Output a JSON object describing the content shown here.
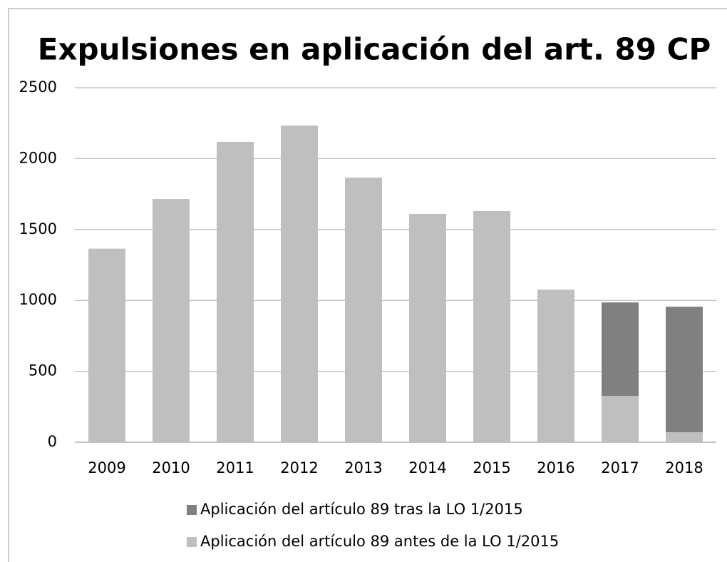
{
  "chart_data": {
    "type": "bar",
    "stacked": true,
    "title": "Expulsiones en aplicación del art. 89 CP",
    "categories": [
      "2009",
      "2010",
      "2011",
      "2012",
      "2013",
      "2014",
      "2015",
      "2016",
      "2017",
      "2018"
    ],
    "series": [
      {
        "name": "Aplicación del artículo 89 antes de la LO 1/2015",
        "color": "#bfbfbf",
        "values": [
          1365,
          1715,
          2118,
          2233,
          1866,
          1610,
          1630,
          1076,
          327,
          70
        ]
      },
      {
        "name": "Aplicación del artículo 89 tras la LO 1/2015",
        "color": "#808080",
        "values": [
          null,
          null,
          null,
          null,
          null,
          null,
          null,
          null,
          659,
          886
        ]
      }
    ],
    "ylim": [
      0,
      2500
    ],
    "yticks": [
      0,
      500,
      1000,
      1500,
      2000,
      2500
    ],
    "grid": true
  }
}
